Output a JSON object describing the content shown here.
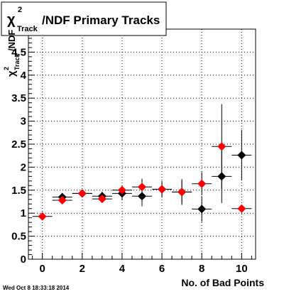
{
  "chart_data": {
    "type": "scatter",
    "title": {
      "symbol": "χ",
      "superscript": "2",
      "subscript": "Track",
      "text": "/NDF Primary Tracks"
    },
    "xlabel": "No. of Bad Points",
    "ylabel": {
      "symbol": "χ",
      "superscript": "2",
      "subscript": "Track",
      "text": "/NDF"
    },
    "xlim": [
      -0.7,
      10.7
    ],
    "ylim": [
      0,
      5
    ],
    "x_ticks": [
      0,
      2,
      4,
      6,
      8,
      10
    ],
    "y_ticks": [
      0,
      0.5,
      1,
      1.5,
      2,
      2.5,
      3,
      3.5,
      4,
      4.5
    ],
    "y_tick_labels": [
      "0",
      "0.5",
      "1",
      "1.5",
      "2",
      "2.5",
      "3",
      "3.5",
      "4",
      "4.5"
    ],
    "grid": true,
    "series": [
      {
        "color": "#000000",
        "x": [
          1,
          2,
          3,
          4,
          5,
          6,
          7,
          8,
          9,
          10
        ],
        "y": [
          1.35,
          1.43,
          1.37,
          1.43,
          1.37,
          1.52,
          1.46,
          1.09,
          1.8,
          2.26
        ],
        "y_err": [
          0.05,
          0.07,
          0.1,
          0.15,
          0.22,
          0.18,
          0.28,
          0.28,
          0.58,
          0.55
        ]
      },
      {
        "color": "#ff0000",
        "x": [
          0,
          1,
          2,
          3,
          4,
          5,
          6,
          7,
          8,
          9,
          10
        ],
        "y": [
          0.93,
          1.28,
          1.43,
          1.31,
          1.5,
          1.57,
          1.52,
          1.46,
          1.64,
          2.45,
          1.1
        ],
        "y_err": [
          0.03,
          0.05,
          0.06,
          0.08,
          0.1,
          0.18,
          0.14,
          0.25,
          0.25,
          0.92,
          0.0
        ]
      }
    ]
  },
  "footer": {
    "timestamp": "Wed Oct  8 18:33:18 2014"
  }
}
